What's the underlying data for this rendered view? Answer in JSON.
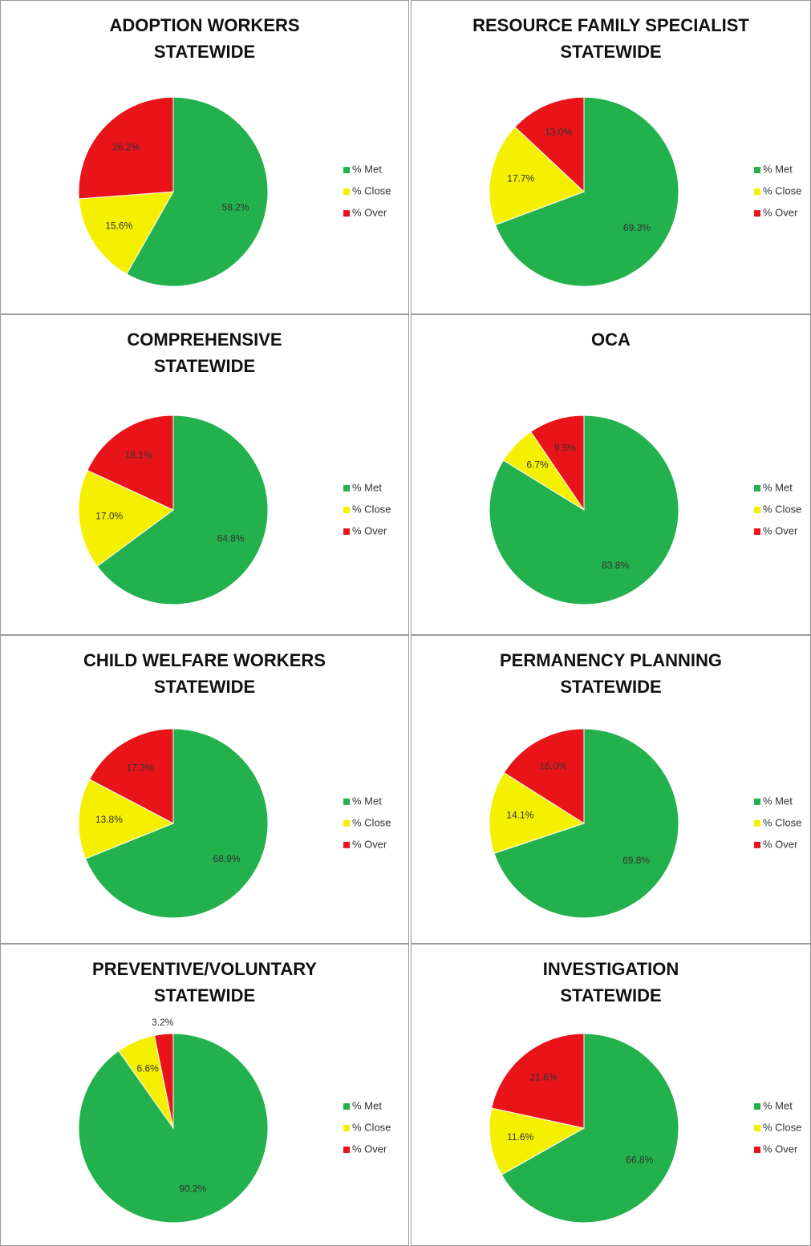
{
  "chart_data": [
    {
      "type": "pie",
      "title": "ADOPTION WORKERS",
      "subtitle": "STATEWIDE",
      "categories": [
        "% Met",
        "% Close",
        "% Over"
      ],
      "values": [
        58.2,
        15.6,
        26.2
      ],
      "value_labels": [
        "58.2%",
        "15.6%",
        "26.2%"
      ],
      "colors": [
        "#22b14c",
        "#f5f000",
        "#e8141a"
      ]
    },
    {
      "type": "pie",
      "title": "RESOURCE FAMILY SPECIALIST",
      "subtitle": "STATEWIDE",
      "categories": [
        "% Met",
        "% Close",
        "% Over"
      ],
      "values": [
        69.3,
        17.7,
        13.0
      ],
      "value_labels": [
        "69.3%",
        "17.7%",
        "13.0%"
      ],
      "colors": [
        "#22b14c",
        "#f5f000",
        "#e8141a"
      ]
    },
    {
      "type": "pie",
      "title": "COMPREHENSIVE",
      "subtitle": "STATEWIDE",
      "categories": [
        "% Met",
        "% Close",
        "% Over"
      ],
      "values": [
        64.8,
        17.0,
        18.1
      ],
      "value_labels": [
        "64.8%",
        "17.0%",
        "18.1%"
      ],
      "colors": [
        "#22b14c",
        "#f5f000",
        "#e8141a"
      ]
    },
    {
      "type": "pie",
      "title": "OCA",
      "categories": [
        "% Met",
        "% Close",
        "% Over"
      ],
      "values": [
        83.8,
        6.7,
        9.5
      ],
      "value_labels": [
        "83.8%",
        "6.7%",
        "9.5%"
      ],
      "colors": [
        "#22b14c",
        "#f5f000",
        "#e8141a"
      ]
    },
    {
      "type": "pie",
      "title": "CHILD WELFARE WORKERS",
      "subtitle": "STATEWIDE",
      "categories": [
        "% Met",
        "% Close",
        "% Over"
      ],
      "values": [
        68.9,
        13.8,
        17.3
      ],
      "value_labels": [
        "68.9%",
        "13.8%",
        "17.3%"
      ],
      "colors": [
        "#22b14c",
        "#f5f000",
        "#e8141a"
      ]
    },
    {
      "type": "pie",
      "title": "PERMANENCY PLANNING",
      "subtitle": "STATEWIDE",
      "categories": [
        "% Met",
        "% Close",
        "% Over"
      ],
      "values": [
        69.8,
        14.1,
        16.0
      ],
      "value_labels": [
        "69.8%",
        "14.1%",
        "16.0%"
      ],
      "colors": [
        "#22b14c",
        "#f5f000",
        "#e8141a"
      ]
    },
    {
      "type": "pie",
      "title": "PREVENTIVE/VOLUNTARY",
      "subtitle": "STATEWIDE",
      "categories": [
        "% Met",
        "% Close",
        "% Over"
      ],
      "values": [
        90.2,
        6.6,
        3.2
      ],
      "value_labels": [
        "90.2%",
        "6.6%",
        "3.2%"
      ],
      "colors": [
        "#22b14c",
        "#f5f000",
        "#e8141a"
      ]
    },
    {
      "type": "pie",
      "title": "INVESTIGATION",
      "subtitle": "STATEWIDE",
      "categories": [
        "% Met",
        "% Close",
        "% Over"
      ],
      "values": [
        66.8,
        11.6,
        21.6
      ],
      "value_labels": [
        "66.8%",
        "11.6%",
        "21.6%"
      ],
      "colors": [
        "#22b14c",
        "#f5f000",
        "#e8141a"
      ]
    }
  ]
}
